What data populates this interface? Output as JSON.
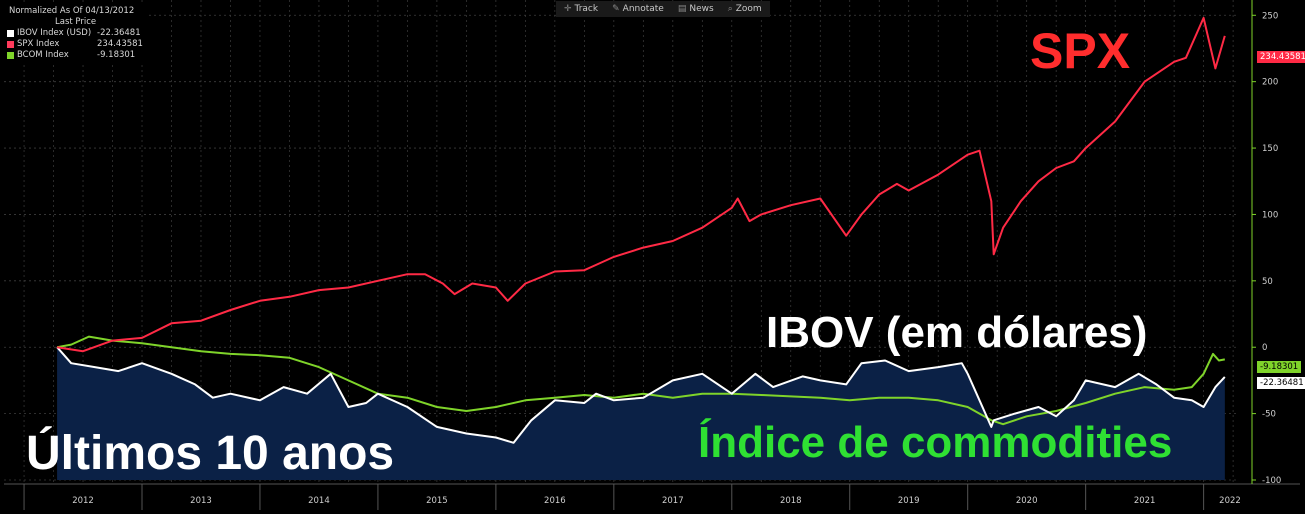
{
  "toolbar": [
    {
      "icon": "crosshair-icon",
      "glyph": "✛",
      "label": "Track"
    },
    {
      "icon": "pencil-icon",
      "glyph": "✎",
      "label": "Annotate"
    },
    {
      "icon": "news-icon",
      "glyph": "▤",
      "label": "News"
    },
    {
      "icon": "zoom-icon",
      "glyph": "⌕",
      "label": "Zoom"
    }
  ],
  "legend": {
    "header_line1": "Normalized As Of 04/13/2012",
    "header_line2": "Last Price",
    "items": [
      {
        "name": "IBOV Index (USD)",
        "value": "-22.36481",
        "color": "#ffffff"
      },
      {
        "name": "SPX Index",
        "value": "234.43581",
        "color": "#ff3b5c"
      },
      {
        "name": "BCOM Index",
        "value": "-9.18301",
        "color": "#7fd42a"
      }
    ]
  },
  "annotations": {
    "spx": "SPX",
    "ibov": "IBOV (em dólares)",
    "bcom": "Índice de commodities",
    "period": "Últimos 10 anos"
  },
  "colors": {
    "spx": "#ff2a45",
    "ibov": "#ffffff",
    "bcom": "#7fd42a",
    "ibov_fill": "#0b2146",
    "grid": "#3d3d3d",
    "axis_text": "#cfcfcf"
  },
  "chart_data": {
    "type": "line",
    "title": "",
    "xlabel": "",
    "ylabel": "",
    "ylim": [
      -100,
      260
    ],
    "y_ticks": [
      -100,
      -50,
      0,
      50,
      100,
      150,
      200,
      250
    ],
    "x_range": [
      2012.28,
      2022.18
    ],
    "x_tick_labels": [
      "2012",
      "2013",
      "2014",
      "2015",
      "2016",
      "2017",
      "2018",
      "2019",
      "2020",
      "2021",
      "2022"
    ],
    "x_tick_positions": [
      2012.0,
      2013.0,
      2014.0,
      2015.0,
      2016.0,
      2017.0,
      2018.0,
      2019.0,
      2020.0,
      2021.0,
      2022.0
    ],
    "grid": true,
    "last_value_tags": [
      {
        "series": "SPX Index",
        "label": "234.43581"
      },
      {
        "series": "BCOM Index",
        "label": "-9.18301"
      },
      {
        "series": "IBOV Index (USD)",
        "label": "-22.36481"
      }
    ],
    "series": [
      {
        "name": "SPX Index",
        "x": [
          2012.28,
          2012.5,
          2012.75,
          2013.0,
          2013.25,
          2013.5,
          2013.75,
          2014.0,
          2014.25,
          2014.5,
          2014.75,
          2015.0,
          2015.25,
          2015.4,
          2015.55,
          2015.65,
          2015.8,
          2016.0,
          2016.1,
          2016.25,
          2016.5,
          2016.75,
          2016.85,
          2017.0,
          2017.25,
          2017.5,
          2017.75,
          2018.0,
          2018.05,
          2018.15,
          2018.25,
          2018.5,
          2018.75,
          2018.97,
          2019.1,
          2019.25,
          2019.4,
          2019.5,
          2019.75,
          2020.0,
          2020.1,
          2020.2,
          2020.22,
          2020.3,
          2020.45,
          2020.6,
          2020.75,
          2020.9,
          2021.0,
          2021.25,
          2021.5,
          2021.75,
          2021.85,
          2022.0,
          2022.1,
          2022.18
        ],
        "values": [
          0,
          -3,
          5,
          7,
          18,
          20,
          28,
          35,
          38,
          43,
          45,
          50,
          55,
          55,
          48,
          40,
          48,
          45,
          35,
          48,
          57,
          58,
          62,
          68,
          75,
          80,
          90,
          105,
          112,
          95,
          100,
          107,
          112,
          84,
          100,
          115,
          123,
          118,
          130,
          145,
          148,
          110,
          70,
          90,
          110,
          125,
          135,
          140,
          150,
          170,
          200,
          215,
          218,
          248,
          210,
          234.44
        ]
      },
      {
        "name": "IBOV Index (USD)",
        "x": [
          2012.28,
          2012.4,
          2012.6,
          2012.8,
          2013.0,
          2013.25,
          2013.45,
          2013.6,
          2013.75,
          2014.0,
          2014.2,
          2014.4,
          2014.6,
          2014.75,
          2014.9,
          2015.0,
          2015.25,
          2015.5,
          2015.75,
          2016.0,
          2016.15,
          2016.3,
          2016.5,
          2016.75,
          2016.85,
          2017.0,
          2017.25,
          2017.5,
          2017.75,
          2018.0,
          2018.2,
          2018.35,
          2018.6,
          2018.75,
          2018.97,
          2019.1,
          2019.3,
          2019.5,
          2019.75,
          2019.95,
          2020.0,
          2020.1,
          2020.2,
          2020.22,
          2020.4,
          2020.6,
          2020.75,
          2020.9,
          2021.0,
          2021.25,
          2021.45,
          2021.6,
          2021.75,
          2021.9,
          2022.0,
          2022.1,
          2022.18
        ],
        "values": [
          0,
          -12,
          -15,
          -18,
          -12,
          -20,
          -28,
          -38,
          -35,
          -40,
          -30,
          -35,
          -20,
          -45,
          -42,
          -35,
          -45,
          -60,
          -65,
          -68,
          -72,
          -55,
          -40,
          -42,
          -35,
          -40,
          -38,
          -25,
          -20,
          -35,
          -20,
          -30,
          -22,
          -25,
          -28,
          -12,
          -10,
          -18,
          -15,
          -12,
          -20,
          -40,
          -60,
          -55,
          -50,
          -45,
          -52,
          -40,
          -25,
          -30,
          -20,
          -28,
          -38,
          -40,
          -45,
          -30,
          -22.36
        ]
      },
      {
        "name": "BCOM Index",
        "x": [
          2012.28,
          2012.4,
          2012.55,
          2012.75,
          2013.0,
          2013.25,
          2013.5,
          2013.75,
          2014.0,
          2014.25,
          2014.5,
          2014.75,
          2015.0,
          2015.25,
          2015.5,
          2015.75,
          2016.0,
          2016.25,
          2016.5,
          2016.75,
          2017.0,
          2017.25,
          2017.5,
          2017.75,
          2018.0,
          2018.25,
          2018.5,
          2018.75,
          2019.0,
          2019.25,
          2019.5,
          2019.75,
          2020.0,
          2020.2,
          2020.3,
          2020.5,
          2020.75,
          2021.0,
          2021.25,
          2021.5,
          2021.75,
          2021.9,
          2022.0,
          2022.08,
          2022.13,
          2022.18
        ],
        "values": [
          0,
          2,
          8,
          5,
          3,
          0,
          -3,
          -5,
          -6,
          -8,
          -15,
          -25,
          -35,
          -38,
          -45,
          -48,
          -45,
          -40,
          -38,
          -36,
          -38,
          -35,
          -38,
          -35,
          -35,
          -36,
          -37,
          -38,
          -40,
          -38,
          -38,
          -40,
          -45,
          -55,
          -58,
          -52,
          -48,
          -42,
          -35,
          -30,
          -32,
          -30,
          -20,
          -5,
          -10,
          -9.18
        ]
      }
    ]
  }
}
